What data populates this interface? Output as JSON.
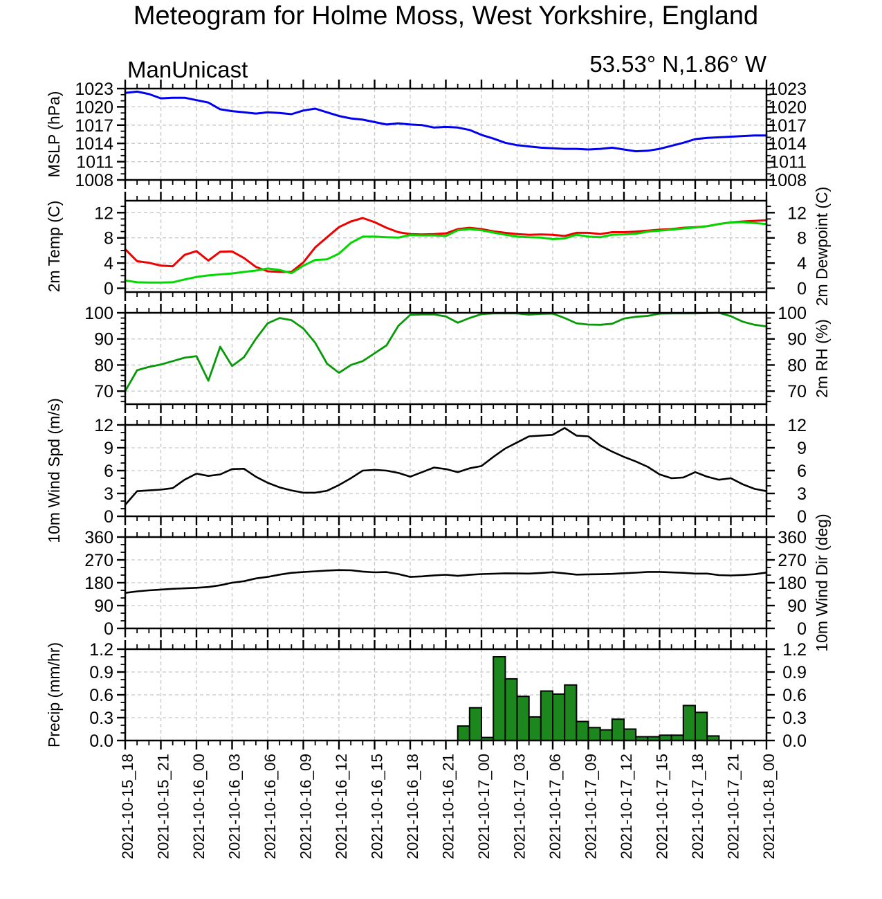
{
  "header": {
    "title": "Meteogram for Holme Moss, West Yorkshire, England",
    "source_label": "ManUnicast",
    "coords_label": "53.53° N,1.86° W"
  },
  "style": {
    "grid_color": "#c6c6c6",
    "frame_color": "#000000",
    "background": "#ffffff"
  },
  "x_axis": {
    "hours_total": 54,
    "major_step_hours": 3,
    "minor_step_hours": 1,
    "grid_step_hours": 3,
    "tick_labels": [
      "2021-10-15_18",
      "2021-10-15_21",
      "2021-10-16_00",
      "2021-10-16_03",
      "2021-10-16_06",
      "2021-10-16_09",
      "2021-10-16_12",
      "2021-10-16_15",
      "2021-10-16_18",
      "2021-10-16_21",
      "2021-10-17_00",
      "2021-10-17_03",
      "2021-10-17_06",
      "2021-10-17_09",
      "2021-10-17_12",
      "2021-10-17_15",
      "2021-10-17_18",
      "2021-10-17_21",
      "2021-10-18_00"
    ]
  },
  "chart_data": [
    {
      "id": "mslp",
      "type": "line",
      "ylabel_left": "MSLP (hPa)",
      "ylabel_right": "",
      "ylim": [
        1008,
        1023
      ],
      "yticks": [
        1008,
        1011,
        1014,
        1017,
        1020,
        1023
      ],
      "ytick_labels": [
        "1008",
        "1011",
        "1014",
        "1017",
        "1020",
        "1023"
      ],
      "yminor": 1,
      "series": [
        {
          "name": "MSLP",
          "color": "#0000ee",
          "width": 3,
          "values": [
            1022.3,
            1022.5,
            1022.1,
            1021.4,
            1021.5,
            1021.5,
            1021.1,
            1020.7,
            1019.6,
            1019.3,
            1019.1,
            1018.9,
            1019.1,
            1019.0,
            1018.8,
            1019.4,
            1019.7,
            1019.1,
            1018.5,
            1018.1,
            1017.9,
            1017.5,
            1017.1,
            1017.3,
            1017.1,
            1017.0,
            1016.6,
            1016.7,
            1016.6,
            1016.2,
            1015.4,
            1014.8,
            1014.1,
            1013.7,
            1013.5,
            1013.3,
            1013.2,
            1013.1,
            1013.1,
            1013.0,
            1013.1,
            1013.3,
            1013.0,
            1012.7,
            1012.8,
            1013.1,
            1013.6,
            1014.1,
            1014.7,
            1014.9,
            1015.0,
            1015.1,
            1015.2,
            1015.3,
            1015.3
          ]
        }
      ]
    },
    {
      "id": "temp",
      "type": "line",
      "ylabel_left": "2m Temp (C)",
      "ylabel_right": "2m Dewpoint (C)",
      "ylim": [
        -0.6,
        13.9
      ],
      "yticks": [
        0,
        4,
        8,
        12
      ],
      "ytick_labels": [
        "0",
        "4",
        "8",
        "12"
      ],
      "yminor": 1,
      "series": [
        {
          "name": "2m Temp",
          "color": "#ee0000",
          "width": 3,
          "values": [
            6.2,
            4.3,
            4.05,
            3.6,
            3.5,
            5.3,
            5.9,
            4.4,
            5.8,
            5.85,
            4.8,
            3.4,
            2.7,
            2.6,
            2.6,
            4.1,
            6.5,
            8.1,
            9.7,
            10.6,
            11.15,
            10.5,
            9.6,
            8.9,
            8.6,
            8.55,
            8.6,
            8.7,
            9.4,
            9.6,
            9.4,
            9.05,
            8.8,
            8.6,
            8.5,
            8.55,
            8.5,
            8.3,
            8.8,
            8.8,
            8.6,
            8.9,
            8.9,
            9.0,
            9.15,
            9.3,
            9.4,
            9.6,
            9.7,
            9.85,
            10.2,
            10.45,
            10.6,
            10.7,
            10.8
          ]
        },
        {
          "name": "2m Dewpoint",
          "color": "#00d800",
          "width": 3,
          "values": [
            1.25,
            0.95,
            0.9,
            0.9,
            0.95,
            1.4,
            1.8,
            2.05,
            2.2,
            2.35,
            2.6,
            2.8,
            3.15,
            2.9,
            2.4,
            3.6,
            4.5,
            4.6,
            5.5,
            7.2,
            8.2,
            8.2,
            8.1,
            8.05,
            8.45,
            8.4,
            8.4,
            8.3,
            9.2,
            9.4,
            9.2,
            8.85,
            8.5,
            8.2,
            8.1,
            8.05,
            7.8,
            7.9,
            8.5,
            8.2,
            8.1,
            8.5,
            8.55,
            8.65,
            9.0,
            9.15,
            9.3,
            9.5,
            9.65,
            9.85,
            10.2,
            10.45,
            10.5,
            10.35,
            10.2
          ]
        }
      ]
    },
    {
      "id": "rh",
      "type": "line",
      "ylabel_left": "",
      "ylabel_right": "2m RH (%)",
      "ylim": [
        65,
        100
      ],
      "yticks": [
        70,
        80,
        90,
        100
      ],
      "ytick_labels": [
        "70",
        "80",
        "90",
        "100"
      ],
      "yminor": 2,
      "series": [
        {
          "name": "2m RH",
          "color": "#089908",
          "width": 2.8,
          "values": [
            70,
            78,
            79.3,
            80.2,
            81.5,
            82.8,
            83.4,
            74,
            87,
            79.6,
            83,
            90,
            96,
            98,
            97.2,
            94,
            88.5,
            80.5,
            77,
            80,
            81.5,
            84.5,
            87.5,
            95,
            99.2,
            99.4,
            99.4,
            98.6,
            96.2,
            98,
            99.5,
            99.8,
            99.8,
            99.8,
            99.3,
            99.6,
            99.7,
            98,
            96,
            95.5,
            95.4,
            95.8,
            97.8,
            98.5,
            98.8,
            99.7,
            99.8,
            99.8,
            99.8,
            99.9,
            100,
            98.7,
            96.6,
            95.4,
            94.8
          ]
        }
      ]
    },
    {
      "id": "wspd",
      "type": "line",
      "ylabel_left": "10m Wind Spd (m/s)",
      "ylabel_right": "",
      "ylim": [
        0,
        12
      ],
      "yticks": [
        0,
        3,
        6,
        9,
        12
      ],
      "ytick_labels": [
        "0",
        "3",
        "6",
        "9",
        "12"
      ],
      "yminor": 1,
      "series": [
        {
          "name": "10m Wind Spd",
          "color": "#000000",
          "width": 2.6,
          "values": [
            1.5,
            3.3,
            3.4,
            3.5,
            3.7,
            4.8,
            5.6,
            5.3,
            5.5,
            6.2,
            6.25,
            5.2,
            4.4,
            3.8,
            3.4,
            3.1,
            3.1,
            3.35,
            4.1,
            5.0,
            6.0,
            6.1,
            6.0,
            5.7,
            5.2,
            5.8,
            6.4,
            6.2,
            5.8,
            6.3,
            6.6,
            7.8,
            8.9,
            9.7,
            10.5,
            10.6,
            10.7,
            11.6,
            10.6,
            10.5,
            9.3,
            8.5,
            7.8,
            7.2,
            6.5,
            5.5,
            5.0,
            5.1,
            5.8,
            5.2,
            4.8,
            5.0,
            4.2,
            3.6,
            3.3
          ]
        }
      ]
    },
    {
      "id": "wdir",
      "type": "line",
      "ylabel_left": "",
      "ylabel_right": "10m Wind Dir (deg)",
      "ylim": [
        0,
        360
      ],
      "yticks": [
        0,
        90,
        180,
        270,
        360
      ],
      "ytick_labels": [
        "0",
        "90",
        "180",
        "270",
        "360"
      ],
      "yminor": 30,
      "series": [
        {
          "name": "10m Wind Dir",
          "color": "#000000",
          "width": 2.6,
          "values": [
            140,
            146,
            150,
            153,
            156,
            158,
            160,
            163,
            170,
            180,
            186,
            197,
            203,
            212,
            219,
            222,
            225,
            228,
            230,
            229,
            224,
            221,
            222,
            214,
            203,
            205,
            209,
            211.5,
            207,
            211,
            214,
            215.5,
            217,
            216.5,
            216,
            218.5,
            221.5,
            217,
            212,
            213,
            213.5,
            215,
            217.5,
            219.5,
            222.5,
            222.5,
            220.5,
            219,
            216,
            216,
            210,
            208.5,
            210.5,
            213.5,
            220
          ]
        }
      ]
    },
    {
      "id": "precip",
      "type": "bar",
      "ylabel_left": "Precip (mm/hr)",
      "ylabel_right": "",
      "ylim": [
        0,
        1.2
      ],
      "yticks": [
        0,
        0.3,
        0.6,
        0.9,
        1.2
      ],
      "ytick_labels": [
        "0.0",
        "0.3",
        "0.6",
        "0.9",
        "1.2"
      ],
      "yminor": 0.1,
      "bar_color": "#1c871c",
      "bar_outline": "#000000",
      "bar_start_hour": 28,
      "bar_width_hours": 1,
      "values": [
        0.19,
        0.43,
        0.04,
        1.1,
        0.81,
        0.58,
        0.31,
        0.65,
        0.61,
        0.73,
        0.25,
        0.17,
        0.14,
        0.28,
        0.15,
        0.05,
        0.05,
        0.07,
        0.07,
        0.46,
        0.37,
        0.06
      ]
    }
  ]
}
